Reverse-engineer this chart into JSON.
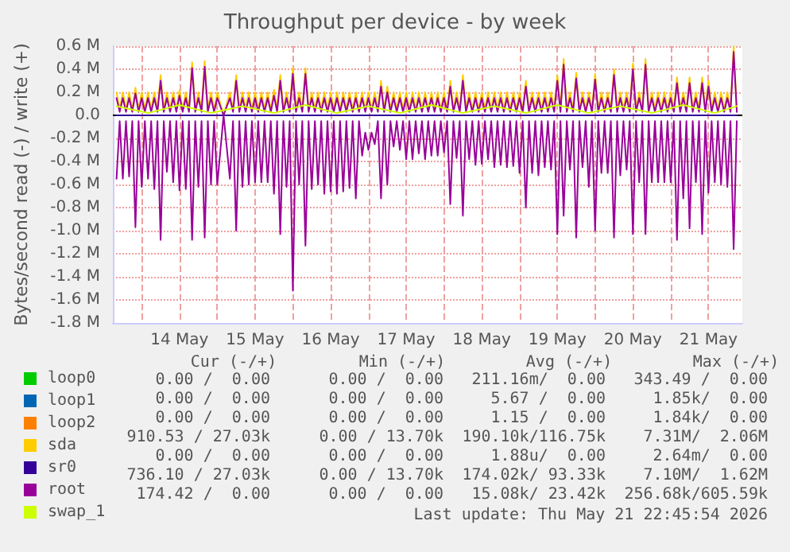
{
  "chart_data": {
    "type": "line",
    "title": "Throughput per device - by week",
    "ylabel": "Bytes/second read (-) / write (+)",
    "xlim": [
      "2026-05-13T14:50",
      "2026-05-21T22:45"
    ],
    "xticks": [
      {
        "value": "2026-05-14T00:00",
        "label": null
      },
      {
        "value": "2026-05-14T12:00",
        "label": "14 May"
      },
      {
        "value": "2026-05-15T00:00",
        "label": null
      },
      {
        "value": "2026-05-15T12:00",
        "label": "15 May"
      },
      {
        "value": "2026-05-16T00:00",
        "label": null
      },
      {
        "value": "2026-05-16T12:00",
        "label": "16 May"
      },
      {
        "value": "2026-05-17T00:00",
        "label": null
      },
      {
        "value": "2026-05-17T12:00",
        "label": "17 May"
      },
      {
        "value": "2026-05-18T00:00",
        "label": null
      },
      {
        "value": "2026-05-18T12:00",
        "label": "18 May"
      },
      {
        "value": "2026-05-19T00:00",
        "label": null
      },
      {
        "value": "2026-05-19T12:00",
        "label": "19 May"
      },
      {
        "value": "2026-05-20T00:00",
        "label": null
      },
      {
        "value": "2026-05-20T12:00",
        "label": "20 May"
      },
      {
        "value": "2026-05-21T00:00",
        "label": null
      },
      {
        "value": "2026-05-21T12:00",
        "label": "21 May"
      }
    ],
    "ylim": [
      -1.8,
      0.6
    ],
    "yticks": [
      {
        "value": -1.8,
        "label": "-1.8 M"
      },
      {
        "value": -1.6,
        "label": "-1.6 M"
      },
      {
        "value": -1.4,
        "label": "-1.4 M"
      },
      {
        "value": -1.2,
        "label": "-1.2 M"
      },
      {
        "value": -1.0,
        "label": "-1.0 M"
      },
      {
        "value": -0.8,
        "label": "-0.8 M"
      },
      {
        "value": -0.6,
        "label": "-0.6 M"
      },
      {
        "value": -0.4,
        "label": "-0.4 M"
      },
      {
        "value": -0.2,
        "label": "-0.2 M"
      },
      {
        "value": 0,
        "label": "0.0"
      },
      {
        "value": 0.2,
        "label": "0.2 M"
      },
      {
        "value": 0.4,
        "label": "0.4 M"
      },
      {
        "value": 0.6,
        "label": "0.6 M"
      }
    ],
    "grid": true,
    "legend": "bottom left",
    "marker": "none",
    "line_style": "solid",
    "ref_lines": [
      {
        "axis": "y",
        "value": 0,
        "color": "#000000"
      }
    ],
    "x": [
      "2026-05-13T16:00",
      "2026-05-13T17:00",
      "2026-05-13T18:00",
      "2026-05-13T19:00",
      "2026-05-13T20:00",
      "2026-05-13T21:00",
      "2026-05-13T22:00",
      "2026-05-13T23:00",
      "2026-05-14T00:00",
      "2026-05-14T01:00",
      "2026-05-14T02:00",
      "2026-05-14T03:00",
      "2026-05-14T04:00",
      "2026-05-14T05:00",
      "2026-05-14T06:00",
      "2026-05-14T07:00",
      "2026-05-14T08:00",
      "2026-05-14T09:00",
      "2026-05-14T10:00",
      "2026-05-14T11:00",
      "2026-05-14T12:00",
      "2026-05-14T13:00",
      "2026-05-14T14:00",
      "2026-05-14T15:00",
      "2026-05-14T16:00",
      "2026-05-14T17:00",
      "2026-05-14T18:00",
      "2026-05-14T19:00",
      "2026-05-14T20:00",
      "2026-05-14T21:00",
      "2026-05-14T22:00",
      "2026-05-14T23:00",
      "2026-05-15T00:00",
      "2026-05-15T02:00",
      "2026-05-15T04:00",
      "2026-05-15T05:00",
      "2026-05-15T06:00",
      "2026-05-15T07:00",
      "2026-05-15T08:00",
      "2026-05-15T09:00",
      "2026-05-15T10:00",
      "2026-05-15T11:00",
      "2026-05-15T12:00",
      "2026-05-15T13:00",
      "2026-05-15T14:00",
      "2026-05-15T15:00",
      "2026-05-15T16:00",
      "2026-05-15T17:00",
      "2026-05-15T18:00",
      "2026-05-15T19:00",
      "2026-05-15T20:00",
      "2026-05-15T21:00",
      "2026-05-15T22:00",
      "2026-05-15T23:00",
      "2026-05-16T00:00",
      "2026-05-16T01:00",
      "2026-05-16T02:00",
      "2026-05-16T03:00",
      "2026-05-16T04:00",
      "2026-05-16T05:00",
      "2026-05-16T06:00",
      "2026-05-16T07:00",
      "2026-05-16T08:00",
      "2026-05-16T09:00",
      "2026-05-16T10:00",
      "2026-05-16T11:00",
      "2026-05-16T12:00",
      "2026-05-16T13:00",
      "2026-05-16T14:00",
      "2026-05-16T15:00",
      "2026-05-16T16:00",
      "2026-05-16T17:00",
      "2026-05-16T18:00",
      "2026-05-16T19:00",
      "2026-05-16T20:00",
      "2026-05-16T21:00",
      "2026-05-16T22:00",
      "2026-05-16T23:00",
      "2026-05-17T00:00",
      "2026-05-17T01:00",
      "2026-05-17T02:00",
      "2026-05-17T03:00",
      "2026-05-17T04:00",
      "2026-05-17T05:00",
      "2026-05-17T06:00",
      "2026-05-17T07:00",
      "2026-05-17T08:00",
      "2026-05-17T09:00",
      "2026-05-17T10:00",
      "2026-05-17T11:00",
      "2026-05-17T12:00",
      "2026-05-17T13:00",
      "2026-05-17T14:00",
      "2026-05-17T15:00",
      "2026-05-17T16:00",
      "2026-05-17T17:00",
      "2026-05-17T18:00",
      "2026-05-17T19:00",
      "2026-05-17T20:00",
      "2026-05-17T21:00",
      "2026-05-17T22:00",
      "2026-05-17T23:00",
      "2026-05-18T00:00",
      "2026-05-18T01:00",
      "2026-05-18T02:00",
      "2026-05-18T03:00",
      "2026-05-18T04:00",
      "2026-05-18T05:00",
      "2026-05-18T06:00",
      "2026-05-18T07:00",
      "2026-05-18T08:00",
      "2026-05-18T09:00",
      "2026-05-18T10:00",
      "2026-05-18T11:00",
      "2026-05-18T12:00",
      "2026-05-18T13:00",
      "2026-05-18T14:00",
      "2026-05-18T15:00",
      "2026-05-18T16:00",
      "2026-05-18T17:00",
      "2026-05-18T18:00",
      "2026-05-18T19:00",
      "2026-05-18T20:00",
      "2026-05-18T21:00",
      "2026-05-18T22:00",
      "2026-05-18T23:00",
      "2026-05-19T00:00",
      "2026-05-19T01:00",
      "2026-05-19T02:00",
      "2026-05-19T03:00",
      "2026-05-19T04:00",
      "2026-05-19T05:00",
      "2026-05-19T06:00",
      "2026-05-19T07:00",
      "2026-05-19T08:00",
      "2026-05-19T09:00",
      "2026-05-19T10:00",
      "2026-05-19T11:00",
      "2026-05-19T12:00",
      "2026-05-19T13:00",
      "2026-05-19T14:00",
      "2026-05-19T15:00",
      "2026-05-19T16:00",
      "2026-05-19T17:00",
      "2026-05-19T18:00",
      "2026-05-19T19:00",
      "2026-05-19T20:00",
      "2026-05-19T21:00",
      "2026-05-19T22:00",
      "2026-05-19T23:00",
      "2026-05-20T00:00",
      "2026-05-20T01:00",
      "2026-05-20T02:00",
      "2026-05-20T03:00",
      "2026-05-20T04:00",
      "2026-05-20T05:00",
      "2026-05-20T06:00",
      "2026-05-20T07:00",
      "2026-05-20T08:00",
      "2026-05-20T09:00",
      "2026-05-20T10:00",
      "2026-05-20T11:00",
      "2026-05-20T12:00",
      "2026-05-20T13:00",
      "2026-05-20T14:00",
      "2026-05-20T15:00",
      "2026-05-20T16:00",
      "2026-05-20T17:00",
      "2026-05-20T18:00",
      "2026-05-20T19:00",
      "2026-05-20T20:00",
      "2026-05-20T21:00",
      "2026-05-20T22:00",
      "2026-05-20T23:00",
      "2026-05-21T00:00",
      "2026-05-21T01:00",
      "2026-05-21T02:00",
      "2026-05-21T03:00",
      "2026-05-21T04:00",
      "2026-05-21T05:00",
      "2026-05-21T06:00",
      "2026-05-21T07:00",
      "2026-05-21T08:00",
      "2026-05-21T09:00",
      "2026-05-21T10:00",
      "2026-05-21T11:00",
      "2026-05-21T12:00",
      "2026-05-21T13:00",
      "2026-05-21T14:00",
      "2026-05-21T15:00",
      "2026-05-21T16:00",
      "2026-05-21T17:00",
      "2026-05-21T18:00",
      "2026-05-21T19:00",
      "2026-05-21T20:00",
      "2026-05-21T21:00"
    ],
    "series": [
      {
        "name": "loop0",
        "color": "#00cc00",
        "values": [
          null,
          null,
          null,
          null,
          null,
          null,
          null,
          null,
          null,
          null,
          null,
          null,
          null,
          null,
          null,
          null,
          null,
          null,
          null,
          null,
          null,
          null,
          null,
          null,
          null,
          null,
          null,
          null,
          null,
          null,
          null,
          null,
          null,
          null,
          null,
          null,
          null,
          null,
          null,
          null,
          null,
          null,
          null,
          null,
          null,
          null,
          null,
          null,
          null,
          null,
          null,
          null,
          null,
          null,
          null,
          null,
          null,
          null,
          null,
          null,
          null,
          null,
          null,
          null,
          null,
          null,
          null,
          null,
          null,
          null,
          null,
          null,
          null,
          null,
          null,
          null,
          null,
          null,
          null,
          null,
          null,
          null,
          null,
          null,
          null,
          null,
          null,
          null,
          null,
          null,
          null,
          null,
          null,
          null,
          null,
          null,
          null,
          null,
          null,
          null,
          null,
          null,
          null,
          null,
          null,
          null,
          null,
          null,
          null,
          null,
          null,
          null,
          null,
          null,
          null,
          null,
          null,
          null,
          null,
          null,
          null,
          null,
          null,
          null,
          null,
          null,
          null,
          null,
          null,
          null,
          null,
          null,
          null,
          null,
          null,
          null,
          null,
          null,
          null,
          null,
          null,
          null,
          null,
          null,
          null,
          null,
          null,
          null,
          null,
          null,
          null,
          null,
          null,
          null,
          null,
          null,
          null,
          null,
          null,
          null,
          null,
          null,
          null,
          null,
          null,
          null,
          null,
          null,
          null,
          null,
          null,
          null,
          null,
          null,
          null,
          null,
          null,
          null,
          null,
          null,
          null,
          null,
          null,
          null,
          null,
          null,
          null,
          null,
          null,
          null,
          null,
          null,
          null,
          null,
          null,
          null
        ]
      },
      {
        "name": "loop1",
        "color": "#0066b3",
        "values": [
          null,
          null,
          null,
          null,
          null,
          null,
          null,
          null,
          null,
          null,
          null,
          null,
          null,
          null,
          null,
          null,
          null,
          null,
          null,
          null,
          null,
          null,
          null,
          null,
          null,
          null,
          null,
          null,
          null,
          null,
          null,
          null,
          null,
          null,
          null,
          null,
          null,
          null,
          null,
          null,
          null,
          null,
          null,
          null,
          null,
          null,
          null,
          null,
          null,
          null,
          null,
          null,
          null,
          null,
          null,
          null,
          null,
          null,
          null,
          null,
          null,
          null,
          null,
          null,
          null,
          null,
          null,
          null,
          null,
          null,
          null,
          null,
          null,
          null,
          null,
          null,
          null,
          null,
          null,
          null,
          null,
          null,
          null,
          null,
          null,
          null,
          null,
          null,
          null,
          null,
          null,
          null,
          null,
          null,
          null,
          null,
          null,
          null,
          null,
          null,
          null,
          null,
          null,
          null,
          null,
          null,
          null,
          null,
          null,
          null,
          null,
          null,
          null,
          null,
          null,
          null,
          null,
          null,
          null,
          null,
          null,
          null,
          null,
          null,
          null,
          null,
          null,
          null,
          null,
          null,
          null,
          null,
          null,
          null,
          null,
          null,
          null,
          null,
          null,
          null,
          null,
          null,
          null,
          null,
          null,
          null,
          null,
          null,
          null,
          null,
          null,
          null,
          null,
          null,
          null,
          null,
          null,
          null,
          null,
          null,
          null,
          null,
          null,
          null,
          null,
          null,
          null,
          null,
          null,
          null,
          null,
          null,
          null,
          null,
          null,
          null,
          null,
          null,
          null,
          null,
          null,
          null,
          null,
          null,
          null,
          null,
          null,
          null,
          null,
          null,
          null,
          null,
          null,
          null,
          null,
          null
        ]
      },
      {
        "name": "loop2",
        "color": "#ff8000",
        "values": [
          null,
          null,
          null,
          null,
          null,
          null,
          null,
          null,
          null,
          null,
          null,
          null,
          null,
          null,
          null,
          null,
          null,
          null,
          null,
          null,
          null,
          null,
          null,
          null,
          null,
          null,
          null,
          null,
          null,
          null,
          null,
          null,
          null,
          null,
          null,
          null,
          null,
          null,
          null,
          null,
          null,
          null,
          null,
          null,
          null,
          null,
          null,
          null,
          null,
          null,
          null,
          null,
          null,
          null,
          null,
          null,
          null,
          null,
          null,
          null,
          null,
          null,
          null,
          null,
          null,
          null,
          null,
          null,
          null,
          null,
          null,
          null,
          null,
          null,
          null,
          null,
          null,
          null,
          null,
          null,
          null,
          null,
          null,
          null,
          null,
          null,
          null,
          null,
          null,
          null,
          null,
          null,
          null,
          null,
          null,
          null,
          null,
          null,
          null,
          null,
          null,
          null,
          null,
          null,
          null,
          null,
          null,
          null,
          null,
          null,
          null,
          null,
          null,
          null,
          null,
          null,
          null,
          null,
          null,
          null,
          null,
          null,
          null,
          null,
          null,
          null,
          null,
          null,
          null,
          null,
          null,
          null,
          null,
          null,
          null,
          null,
          null,
          null,
          null,
          null,
          null,
          null,
          null,
          null,
          null,
          null,
          null,
          null,
          null,
          null,
          null,
          null,
          null,
          null,
          null,
          null,
          null,
          null,
          null,
          null,
          null,
          null,
          null,
          null,
          null,
          null,
          null,
          null,
          null,
          null,
          null,
          null,
          null,
          null,
          null,
          null,
          null,
          null,
          null,
          null,
          null,
          null,
          null,
          null,
          null,
          null,
          null,
          null,
          null,
          null,
          null,
          null,
          null,
          null,
          null,
          null
        ]
      },
      {
        "name": "sda",
        "color": "#ffcc00",
        "values": [
          0.2,
          0.05,
          0.2,
          0.05,
          0.2,
          0.05,
          0.24,
          0.05,
          0.2,
          0.05,
          0.2,
          0.05,
          0.2,
          0.05,
          0.35,
          0.05,
          0.2,
          0.05,
          0.2,
          0.05,
          0.22,
          0.05,
          0.2,
          0.05,
          0.46,
          0.05,
          0.2,
          0.05,
          0.47,
          0.05,
          0.2,
          0.05,
          0.2,
          0,
          0.2,
          0.05,
          0.35,
          0.05,
          0.2,
          0.05,
          0.2,
          0.05,
          0.2,
          0.05,
          0.2,
          0.05,
          0.2,
          0.05,
          0.22,
          0.05,
          0.35,
          0.05,
          0.2,
          0.05,
          0.41,
          0.05,
          0.2,
          0.05,
          0.41,
          0.05,
          0.2,
          0.05,
          0.2,
          0.05,
          0.2,
          0.05,
          0.2,
          0.05,
          0.2,
          0.05,
          0.2,
          0.05,
          0.2,
          0.05,
          0.2,
          0.05,
          0.2,
          0.05,
          0.2,
          0.05,
          0.2,
          0.05,
          0.3,
          0.05,
          0.25,
          0.05,
          0.2,
          0.05,
          0.2,
          0.05,
          0.2,
          0.05,
          0.2,
          0.05,
          0.2,
          0.05,
          0.2,
          0.05,
          0.2,
          0.05,
          0.2,
          0.05,
          0.2,
          0.05,
          0.3,
          0.05,
          0.2,
          0.05,
          0.35,
          0.05,
          0.2,
          0.05,
          0.2,
          0.05,
          0.2,
          0.05,
          0.2,
          0.05,
          0.2,
          0.05,
          0.2,
          0.05,
          0.2,
          0.05,
          0.2,
          0.05,
          0.2,
          0.05,
          0.3,
          0.05,
          0.2,
          0.05,
          0.2,
          0.05,
          0.2,
          0.05,
          0.2,
          0.05,
          0.35,
          0.05,
          0.49,
          0.05,
          0.2,
          0.05,
          0.37,
          0.05,
          0.2,
          0.05,
          0.2,
          0.05,
          0.36,
          0.05,
          0.2,
          0.05,
          0.2,
          0.05,
          0.4,
          0.05,
          0.2,
          0.05,
          0.2,
          0.05,
          0.45,
          0.05,
          0.2,
          0.05,
          0.49,
          0.05,
          0.2,
          0.05,
          0.2,
          0.05,
          0.2,
          0.05,
          0.2,
          0.05,
          0.33,
          0.05,
          0.2,
          0.05,
          0.33,
          0.05,
          0.2,
          0.05,
          0.33,
          0.05,
          0.3,
          0.05,
          0.2,
          0.05,
          0.2,
          0.05,
          0.2,
          0.05,
          0.6,
          0.05
        ]
      },
      {
        "name": "sr0",
        "color": "#330099",
        "x": [
          "2026-05-13T16:00",
          "2026-05-21T21:00"
        ],
        "values": [
          0,
          0
        ]
      },
      {
        "name": "root",
        "color": "#990099",
        "values": [
          0.15,
          0.03,
          0.15,
          0.03,
          0.15,
          0.03,
          0.19,
          0.03,
          0.15,
          0.03,
          0.15,
          0.03,
          0.15,
          0.03,
          0.3,
          0.03,
          0.15,
          0.03,
          0.15,
          0.03,
          0.17,
          0.03,
          0.15,
          0.03,
          0.41,
          0.03,
          0.15,
          0.03,
          0.42,
          0.03,
          0.15,
          0.03,
          0.15,
          0,
          0.15,
          0.03,
          0.3,
          0.03,
          0.15,
          0.03,
          0.15,
          0.03,
          0.15,
          0.03,
          0.15,
          0.03,
          0.15,
          0.03,
          0.17,
          0.03,
          0.3,
          0.03,
          0.15,
          0.03,
          0.36,
          0.03,
          0.15,
          0.03,
          0.36,
          0.03,
          0.15,
          0.03,
          0.15,
          0.03,
          0.15,
          0.03,
          0.15,
          0.03,
          0.15,
          0.03,
          0.15,
          0.03,
          0.15,
          0.03,
          0.15,
          0.03,
          0.15,
          0.03,
          0.15,
          0.03,
          0.15,
          0.03,
          0.25,
          0.03,
          0.2,
          0.03,
          0.15,
          0.03,
          0.15,
          0.03,
          0.15,
          0.03,
          0.15,
          0.03,
          0.15,
          0.03,
          0.15,
          0.03,
          0.15,
          0.03,
          0.15,
          0.03,
          0.15,
          0.03,
          0.25,
          0.03,
          0.15,
          0.03,
          0.3,
          0.03,
          0.15,
          0.03,
          0.15,
          0.03,
          0.15,
          0.03,
          0.15,
          0.03,
          0.15,
          0.03,
          0.15,
          0.03,
          0.15,
          0.03,
          0.15,
          0.03,
          0.15,
          0.03,
          0.25,
          0.03,
          0.15,
          0.03,
          0.15,
          0.03,
          0.15,
          0.03,
          0.15,
          0.03,
          0.3,
          0.03,
          0.44,
          0.03,
          0.15,
          0.03,
          0.32,
          0.03,
          0.15,
          0.03,
          0.15,
          0.03,
          0.31,
          0.03,
          0.15,
          0.03,
          0.15,
          0.03,
          0.35,
          0.03,
          0.15,
          0.03,
          0.15,
          0.03,
          0.4,
          0.03,
          0.15,
          0.03,
          0.44,
          0.03,
          0.15,
          0.03,
          0.15,
          0.03,
          0.15,
          0.03,
          0.15,
          0.03,
          0.28,
          0.03,
          0.15,
          0.03,
          0.28,
          0.03,
          0.15,
          0.03,
          0.28,
          0.03,
          0.25,
          0.03,
          0.15,
          0.03,
          0.15,
          0.03,
          0.15,
          0.03,
          0.55,
          0.03
        ]
      },
      {
        "color": "#990099",
        "values": [
          -0.55,
          -0.05,
          -0.55,
          -0.05,
          -0.53,
          -0.05,
          -0.97,
          -0.05,
          -0.62,
          -0.05,
          -0.55,
          -0.05,
          -0.64,
          -0.05,
          -1.08,
          -0.05,
          -0.49,
          -0.05,
          -0.58,
          -0.05,
          -0.65,
          -0.05,
          -0.64,
          -0.05,
          -1.08,
          -0.05,
          -0.62,
          -0.05,
          -1.06,
          -0.05,
          -0.6,
          -0.05,
          -0.6,
          0,
          -0.55,
          -0.05,
          -1.0,
          -0.05,
          -0.62,
          -0.05,
          -0.6,
          -0.05,
          -0.58,
          -0.05,
          -0.58,
          -0.05,
          -0.58,
          -0.05,
          -0.68,
          -0.05,
          -1.03,
          -0.05,
          -0.62,
          -0.05,
          -1.52,
          -0.05,
          -0.6,
          -0.05,
          -1.13,
          -0.05,
          -0.64,
          -0.05,
          -0.6,
          -0.05,
          -0.68,
          -0.05,
          -0.66,
          -0.05,
          -0.68,
          -0.05,
          -0.66,
          -0.05,
          -0.63,
          -0.05,
          -0.72,
          -0.05,
          -0.35,
          -0.15,
          -0.3,
          -0.15,
          -0.25,
          -0.05,
          -0.72,
          -0.05,
          -0.6,
          -0.05,
          -0.27,
          -0.05,
          -0.3,
          -0.05,
          -0.38,
          -0.05,
          -0.38,
          -0.05,
          -0.33,
          -0.05,
          -0.38,
          -0.05,
          -0.35,
          -0.05,
          -0.35,
          -0.05,
          -0.32,
          -0.05,
          -0.77,
          -0.05,
          -0.37,
          -0.05,
          -0.87,
          -0.05,
          -0.38,
          -0.05,
          -0.43,
          -0.05,
          -0.42,
          -0.05,
          -0.38,
          -0.05,
          -0.45,
          -0.05,
          -0.43,
          -0.05,
          -0.45,
          -0.05,
          -0.44,
          -0.05,
          -0.5,
          -0.05,
          -0.8,
          -0.05,
          -0.5,
          -0.05,
          -0.52,
          -0.05,
          -0.45,
          -0.05,
          -0.47,
          -0.05,
          -1.03,
          -0.05,
          -0.87,
          -0.05,
          -0.47,
          -0.05,
          -1.06,
          -0.05,
          -0.45,
          -0.05,
          -0.62,
          -0.05,
          -1.0,
          -0.05,
          -0.5,
          -0.05,
          -0.5,
          -0.05,
          -1.06,
          -0.05,
          -0.52,
          -0.05,
          -0.47,
          -0.05,
          -1.03,
          -0.05,
          -0.58,
          -0.05,
          -1.03,
          -0.05,
          -0.58,
          -0.05,
          -0.58,
          -0.05,
          -0.58,
          -0.05,
          -0.58,
          -0.05,
          -1.08,
          -0.05,
          -0.72,
          -0.05,
          -0.98,
          -0.05,
          -0.58,
          -0.05,
          -1.03,
          -0.05,
          -0.67,
          -0.05,
          -0.58,
          -0.05,
          -0.6,
          -0.05,
          -0.62,
          -0.05,
          -1.16,
          -0.05
        ]
      },
      {
        "name": "swap_1",
        "color": "#ccff00",
        "x": [
          "2026-05-13T16:00",
          "2026-05-14T02:00",
          "2026-05-14T12:00",
          "2026-05-14T22:00",
          "2026-05-15T08:00",
          "2026-05-15T18:00",
          "2026-05-16T04:00",
          "2026-05-16T14:00",
          "2026-05-17T00:00",
          "2026-05-17T10:00",
          "2026-05-17T20:00",
          "2026-05-18T06:00",
          "2026-05-18T16:00",
          "2026-05-19T02:00",
          "2026-05-19T12:00",
          "2026-05-19T22:00",
          "2026-05-20T08:00",
          "2026-05-20T18:00",
          "2026-05-21T04:00",
          "2026-05-21T14:00",
          "2026-05-21T21:00"
        ],
        "values": [
          0.08,
          0.02,
          0.09,
          0.02,
          0.08,
          0.02,
          0.09,
          0.02,
          0.08,
          0.02,
          0.09,
          0.02,
          0.08,
          0.02,
          0.09,
          0.02,
          0.08,
          0.02,
          0.09,
          0.02,
          0.08
        ]
      }
    ],
    "annotations": [
      "Cur (-/+)",
      "Min (-/+)",
      "Avg (-/+)",
      "Max (-/+)",
      "0.00 /  0.00",
      "0.00 /  0.00",
      "211.16m/  0.00",
      "343.49 /  0.00",
      "0.00 /  0.00",
      "0.00 /  0.00",
      "5.67 /  0.00",
      "1.85k/  0.00",
      "0.00 /  0.00",
      "0.00 /  0.00",
      "1.15 /  0.00",
      "1.84k/  0.00",
      "910.53 / 27.03k",
      "0.00 / 13.70k",
      "190.10k/116.75k",
      "7.31M/  2.06M",
      "0.00 /  0.00",
      "0.00 /  0.00",
      "1.88u/  0.00",
      "2.64m/  0.00",
      "736.10 / 27.03k",
      "0.00 / 13.70k",
      "174.02k/ 93.33k",
      "7.10M/  1.62M",
      "174.42 /  0.00",
      "0.00 /  0.00",
      "15.08k/ 23.42k",
      "256.68k/605.59k",
      "Last update: Thu May 21 22:45:54 2026"
    ]
  }
}
